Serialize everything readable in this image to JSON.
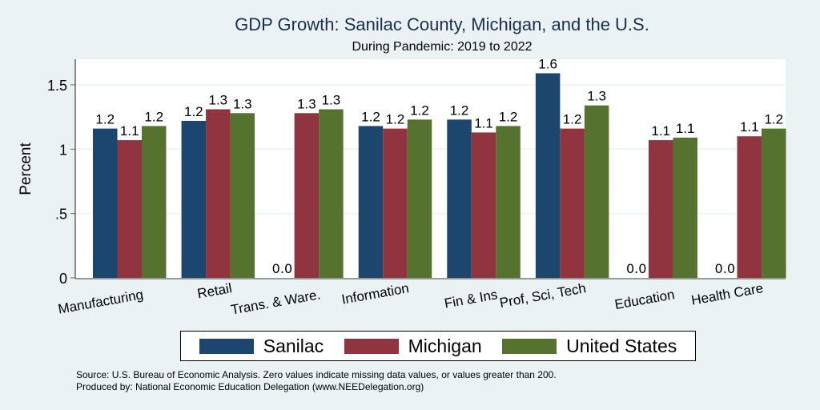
{
  "chart_data": {
    "type": "bar",
    "title": "GDP Growth: Sanilac County, Michigan, and the U.S.",
    "subtitle": "During Pandemic: 2019 to 2022",
    "xlabel": "",
    "ylabel": "Percent",
    "ylim": [
      0,
      1.7
    ],
    "yticks": [
      0,
      0.5,
      1,
      1.5
    ],
    "ytick_labels": [
      "0",
      ".5",
      "1",
      "1.5"
    ],
    "grid": true,
    "legend_position": "bottom",
    "categories": [
      "Manufacturing",
      "Retail",
      "Trans. & Ware.",
      "Information",
      "Fin & Ins",
      "Prof, Sci, Tech",
      "Education",
      "Health Care"
    ],
    "series": [
      {
        "name": "Sanilac",
        "color": "#1c466e",
        "values": [
          1.16,
          1.22,
          0.0,
          1.18,
          1.23,
          1.59,
          0.0,
          0.0
        ],
        "labels": [
          "1.2",
          "1.2",
          "0.0",
          "1.2",
          "1.2",
          "1.6",
          "0.0",
          "0.0"
        ]
      },
      {
        "name": "Michigan",
        "color": "#90353f",
        "values": [
          1.07,
          1.31,
          1.28,
          1.16,
          1.13,
          1.16,
          1.07,
          1.1
        ],
        "labels": [
          "1.1",
          "1.3",
          "1.3",
          "1.2",
          "1.1",
          "1.2",
          "1.1",
          "1.1"
        ]
      },
      {
        "name": "United States",
        "color": "#55732f",
        "values": [
          1.18,
          1.28,
          1.31,
          1.23,
          1.18,
          1.34,
          1.09,
          1.16
        ],
        "labels": [
          "1.2",
          "1.3",
          "1.3",
          "1.2",
          "1.2",
          "1.3",
          "1.1",
          "1.2"
        ]
      }
    ],
    "notes": [
      "Source: U.S. Bureau of Economic Analysis. Zero values indicate missing data values, or values greater than 200.",
      "Produced by: National Economic Education Delegation (www.NEEDelegation.org)"
    ]
  }
}
